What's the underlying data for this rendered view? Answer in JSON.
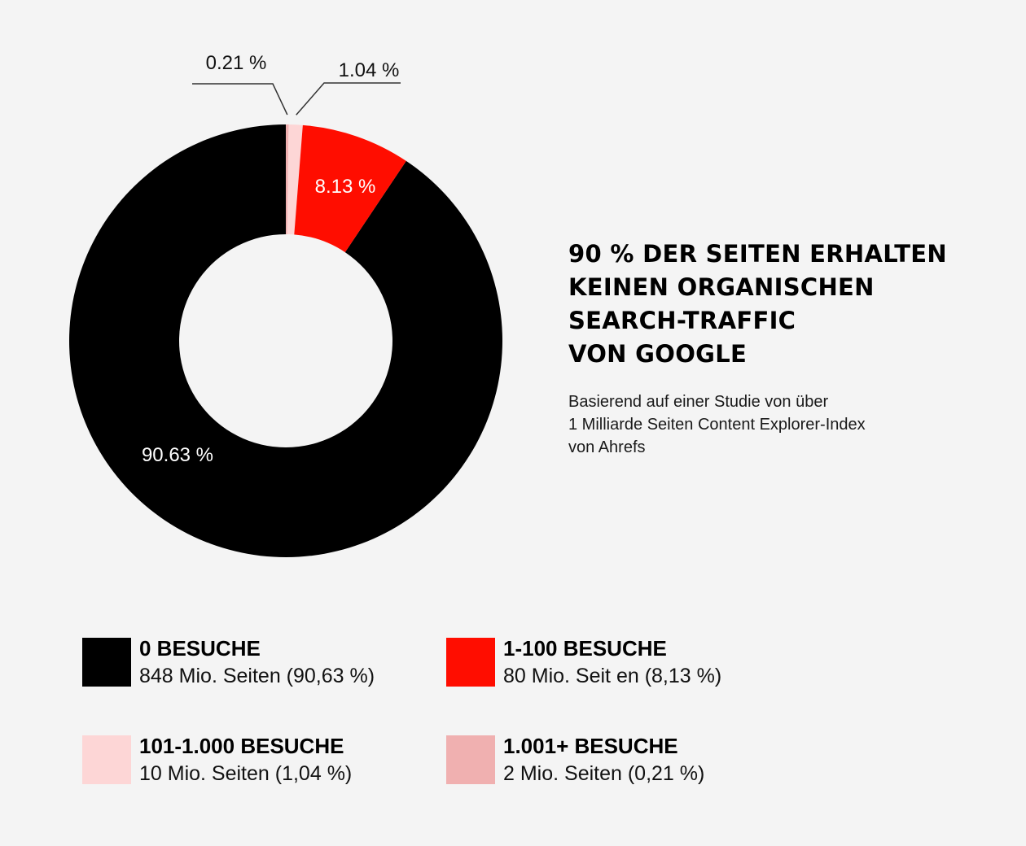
{
  "chart_data": {
    "type": "pie",
    "variant": "donut",
    "slices": [
      {
        "label": "0 BESUCHE",
        "value": 90.63,
        "color": "#000000",
        "value_label": "90.63 %",
        "label_style": "inside"
      },
      {
        "label": "1.001+ BESUCHE",
        "value": 0.21,
        "color": "#f0b0b0",
        "value_label": "0.21 %",
        "label_style": "leader"
      },
      {
        "label": "101-1.000 BESUCHE",
        "value": 1.04,
        "color": "#fdd6d6",
        "value_label": "1.04 %",
        "label_style": "leader"
      },
      {
        "label": "1-100 BESUCHE",
        "value": 8.13,
        "color": "#ff0d00",
        "value_label": "8.13 %",
        "label_style": "inside"
      }
    ]
  },
  "headline": {
    "lines": [
      "90 % DER SEITEN ERHALTEN",
      "KEINEN ORGANISCHEN",
      "SEARCH-TRAFFIC",
      "VON GOOGLE"
    ]
  },
  "subtitle": {
    "lines": [
      "Basierend auf einer Studie von über",
      "1 Milliarde Seiten Content Explorer-Index",
      "von Ahrefs"
    ]
  },
  "legend": [
    {
      "title": "0 BESUCHE",
      "desc": "848 Mio. Seiten (90,63 %)",
      "color": "#000000"
    },
    {
      "title": "1-100 BESUCHE",
      "desc": "80 Mio. Seit  en (8,13 %)",
      "color": "#ff0d00"
    },
    {
      "title": "101-1.000 BESUCHE",
      "desc": "10 Mio. Seiten (1,04 %)",
      "color": "#fdd6d6"
    },
    {
      "title": "1.001+ BESUCHE",
      "desc": "2 Mio. Seiten (0,21 %)",
      "color": "#f0b0b0"
    }
  ]
}
